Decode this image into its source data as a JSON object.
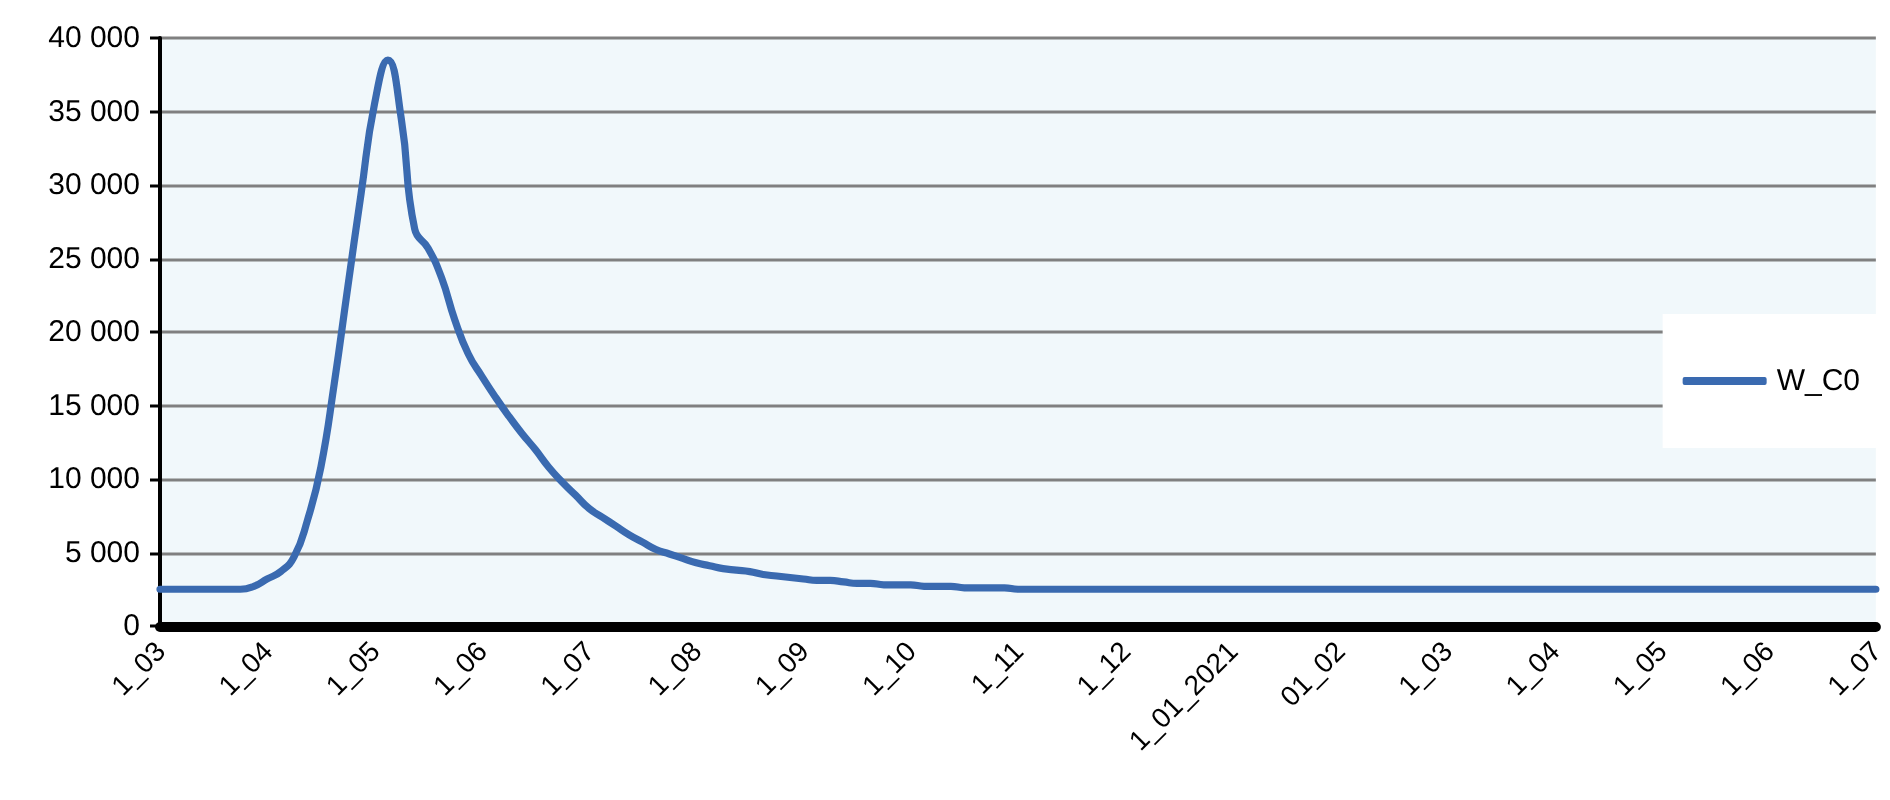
{
  "chart_data": {
    "type": "line",
    "categories": [
      "1_03",
      null,
      null,
      null,
      null,
      null,
      null,
      null,
      "1_04",
      null,
      null,
      null,
      null,
      null,
      null,
      null,
      "1_05",
      null,
      null,
      null,
      null,
      null,
      null,
      null,
      "1_06",
      null,
      null,
      null,
      null,
      null,
      null,
      null,
      "1_07",
      null,
      null,
      null,
      null,
      null,
      null,
      null,
      "1_08",
      null,
      null,
      null,
      null,
      null,
      null,
      null,
      "1_09",
      null,
      null,
      null,
      null,
      null,
      null,
      null,
      "1_10",
      null,
      null,
      null,
      null,
      null,
      null,
      null,
      "1_11",
      null,
      null,
      null,
      null,
      null,
      null,
      null,
      "1_12",
      null,
      null,
      null,
      null,
      null,
      null,
      null,
      "1_01_2021",
      null,
      null,
      null,
      null,
      null,
      null,
      null,
      "01_02",
      null,
      null,
      null,
      null,
      null,
      null,
      null,
      "1_03",
      null,
      null,
      null,
      null,
      null,
      null,
      null,
      "1_04",
      null,
      null,
      null,
      null,
      null,
      null,
      null,
      "1_05",
      null,
      null,
      null,
      null,
      null,
      null,
      null,
      "1_06",
      null,
      null,
      null,
      null,
      null,
      null,
      null,
      "1_07"
    ],
    "series": [
      {
        "name": "W_C0",
        "color": "#3a6ab0",
        "values": [
          2500,
          2500,
          2500,
          2500,
          2500,
          2500,
          2500,
          2700,
          3200,
          3700,
          4700,
          7200,
          10800,
          16500,
          23000,
          29400,
          35500,
          38500,
          34500,
          27000,
          25700,
          23700,
          20800,
          18500,
          17000,
          15600,
          14300,
          13100,
          12000,
          10800,
          9800,
          8900,
          8000,
          7400,
          6800,
          6200,
          5700,
          5200,
          4900,
          4600,
          4300,
          4100,
          3900,
          3800,
          3700,
          3500,
          3400,
          3300,
          3200,
          3100,
          3100,
          3000,
          2900,
          2900,
          2800,
          2800,
          2800,
          2700,
          2700,
          2700,
          2600,
          2600,
          2600,
          2600,
          2500,
          2500,
          2500,
          2500,
          2500,
          2500,
          2500,
          2500,
          2500,
          2500,
          2500,
          2500,
          2500,
          2500,
          2500,
          2500,
          2500,
          2500,
          2500,
          2500,
          2500,
          2500,
          2500,
          2500,
          2500,
          2500,
          2500,
          2500,
          2500,
          2500,
          2500,
          2500,
          2500,
          2500,
          2500,
          2500,
          2500,
          2500,
          2500,
          2500,
          2500,
          2500,
          2500,
          2500,
          2500,
          2500,
          2500,
          2500,
          2500,
          2500,
          2500,
          2500,
          2500,
          2500,
          2500,
          2500,
          2500,
          2500,
          2500,
          2500,
          2500,
          2500,
          2500,
          2500,
          2500
        ]
      }
    ],
    "ylim": [
      0,
      40000
    ],
    "yticks": [
      {
        "value": 0,
        "label": "0"
      },
      {
        "value": 5000,
        "label": "5 000"
      },
      {
        "value": 10000,
        "label": "10 000"
      },
      {
        "value": 15000,
        "label": "15 000"
      },
      {
        "value": 20000,
        "label": "20 000"
      },
      {
        "value": 25000,
        "label": "25 000"
      },
      {
        "value": 30000,
        "label": "30 000"
      },
      {
        "value": 35000,
        "label": "35 000"
      },
      {
        "value": 40000,
        "label": "40 000"
      }
    ],
    "grid": "y",
    "legend": "right"
  }
}
